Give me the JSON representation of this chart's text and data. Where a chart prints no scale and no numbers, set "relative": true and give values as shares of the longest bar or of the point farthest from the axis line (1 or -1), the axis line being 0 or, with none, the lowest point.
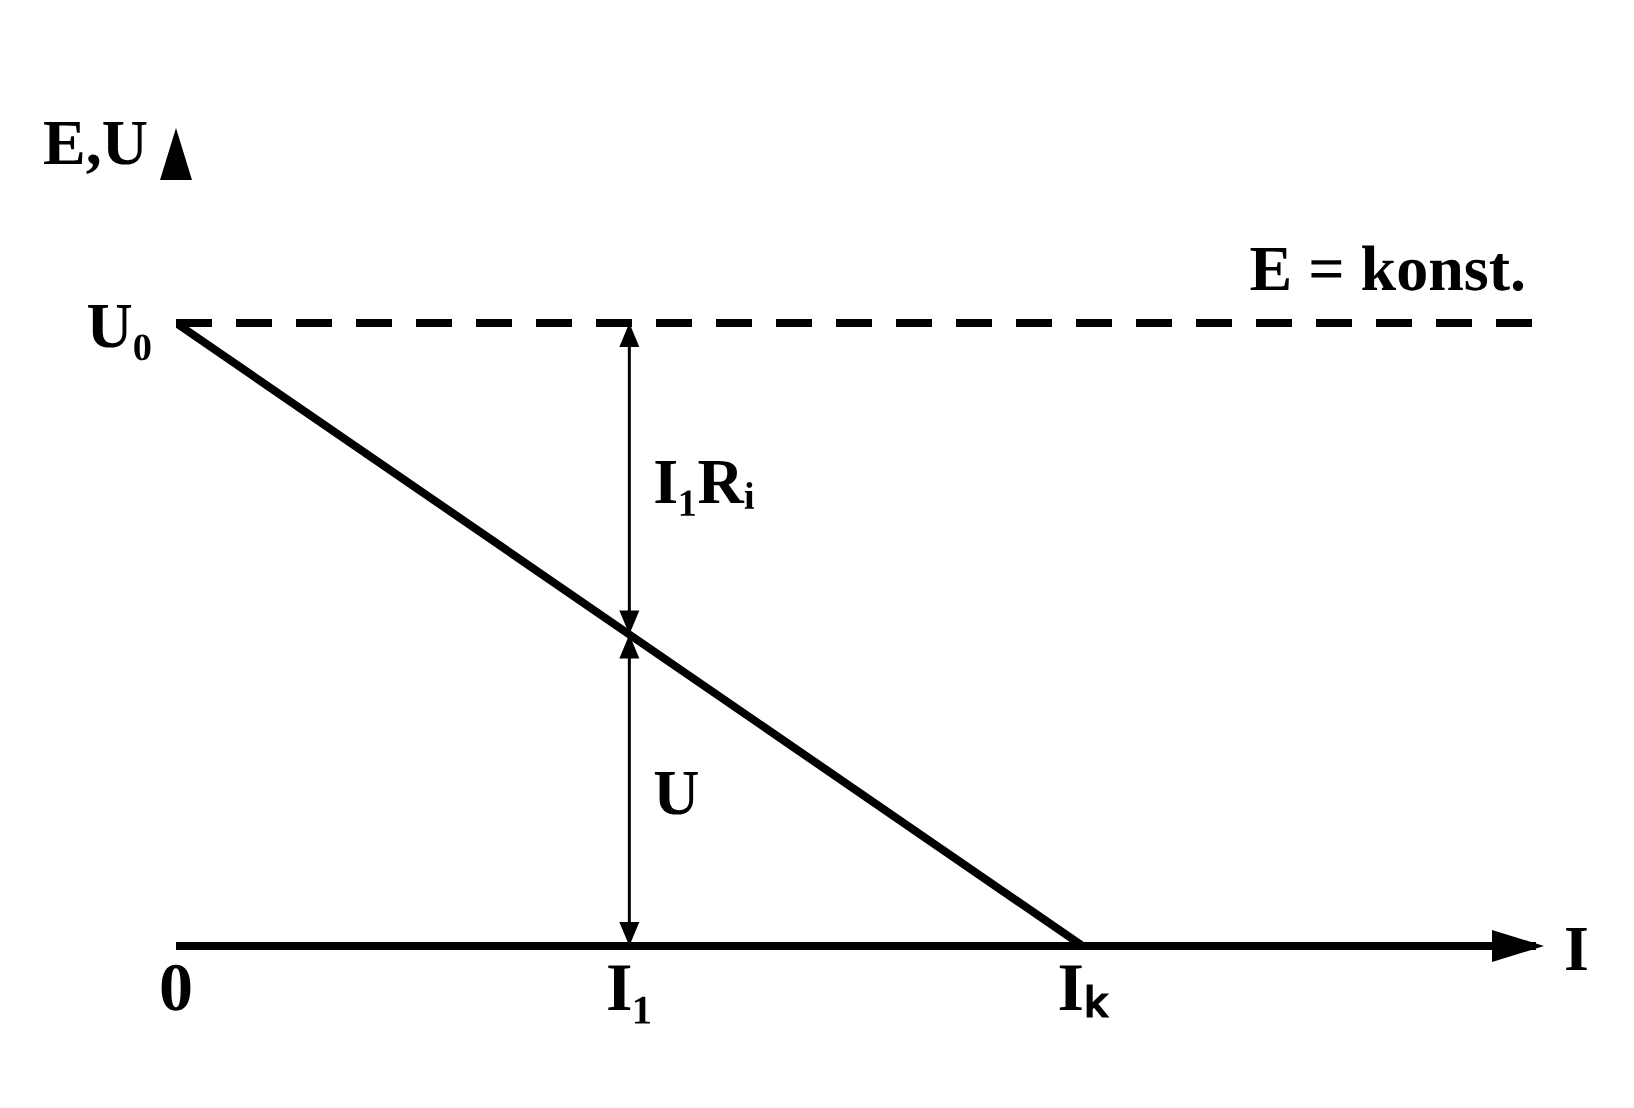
{
  "chart_data": {
    "type": "line",
    "relative": true,
    "xlabel": "I",
    "ylabel": "E,U",
    "categories": [
      "0",
      "I₁",
      "Iₖ",
      null
    ],
    "series": [
      {
        "color": "#000000",
        "values": [
          1,
          0.5,
          0,
          null
        ]
      }
    ],
    "ref_lines": [
      {
        "axis": "y",
        "value": 1,
        "label": "E = konst.",
        "color": "#000000",
        "line_style": "dashed"
      }
    ],
    "annotations": [
      {
        "text": "U₀",
        "x": "0",
        "y": 1
      },
      "I₁Rᵢ",
      "U"
    ],
    "legend": false,
    "marker": "none",
    "line_style": "solid"
  }
}
